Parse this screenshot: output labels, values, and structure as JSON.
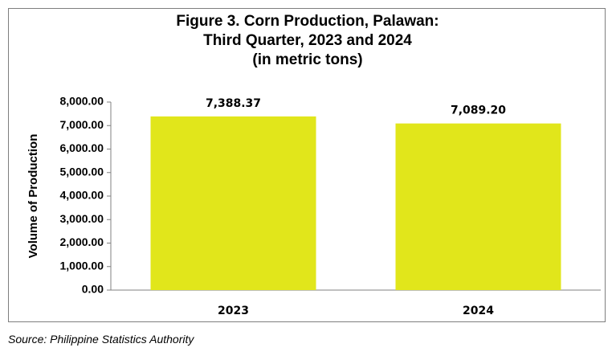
{
  "chart_data": {
    "type": "bar",
    "title_lines": [
      "Figure 3. Corn Production, Palawan:",
      "Third Quarter, 2023 and 2024",
      "(in metric tons)"
    ],
    "categories": [
      "2023",
      "2024"
    ],
    "values": [
      7388.37,
      7089.2
    ],
    "data_labels": [
      "7,388.37",
      "7,089.20"
    ],
    "xlabel": "",
    "ylabel": "Volume of Production",
    "ylim": [
      0,
      8000
    ],
    "y_ticks": [
      0,
      1000,
      2000,
      3000,
      4000,
      5000,
      6000,
      7000,
      8000
    ],
    "y_tick_labels": [
      "0.00",
      "1,000.00",
      "2,000.00",
      "3,000.00",
      "4,000.00",
      "5,000.00",
      "6,000.00",
      "7,000.00",
      "8,000.00"
    ],
    "bar_color": "#e1e61b",
    "grid": false,
    "legend": "none"
  },
  "source": "Source: Philippine Statistics Authority"
}
